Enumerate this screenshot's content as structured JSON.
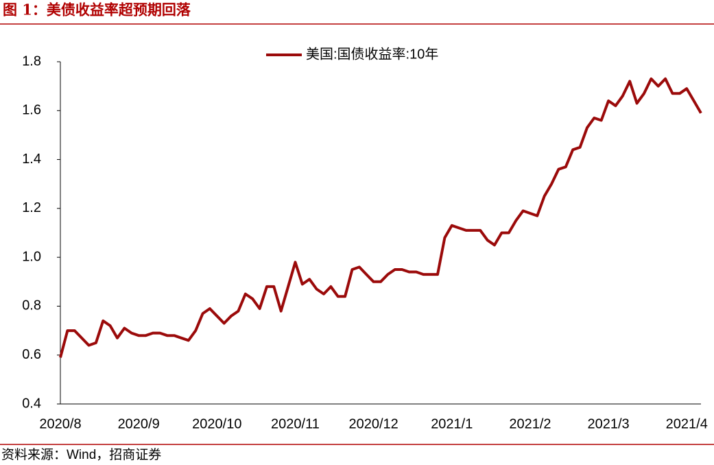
{
  "title": "图 1：美债收益率超预期回落",
  "source": "资料来源：Wind，招商证券",
  "chart_data": {
    "type": "line",
    "categories": [
      "2020/8",
      null,
      null,
      null,
      null,
      null,
      null,
      null,
      null,
      null,
      null,
      "2020/9",
      null,
      null,
      null,
      null,
      null,
      null,
      null,
      null,
      null,
      null,
      "2020/10",
      null,
      null,
      null,
      null,
      null,
      null,
      null,
      null,
      null,
      null,
      "2020/11",
      null,
      null,
      null,
      null,
      null,
      null,
      null,
      null,
      null,
      null,
      "2020/12",
      null,
      null,
      null,
      null,
      null,
      null,
      null,
      null,
      null,
      null,
      "2021/1",
      null,
      null,
      null,
      null,
      null,
      null,
      null,
      null,
      null,
      null,
      "2021/2",
      null,
      null,
      null,
      null,
      null,
      null,
      null,
      null,
      null,
      null,
      "2021/3",
      null,
      null,
      null,
      null,
      null,
      null,
      null,
      null,
      null,
      null,
      "2021/4",
      null,
      null
    ],
    "series": [
      {
        "name": "美国:国债收益率:10年",
        "color": "#9b0a0a",
        "values": [
          0.59,
          0.7,
          0.7,
          0.67,
          0.64,
          0.65,
          0.74,
          0.72,
          0.67,
          0.71,
          0.69,
          0.68,
          0.68,
          0.69,
          0.69,
          0.68,
          0.68,
          0.67,
          0.66,
          0.7,
          0.77,
          0.79,
          0.76,
          0.73,
          0.76,
          0.78,
          0.85,
          0.83,
          0.79,
          0.88,
          0.88,
          0.78,
          0.88,
          0.98,
          0.89,
          0.91,
          0.87,
          0.85,
          0.88,
          0.84,
          0.84,
          0.95,
          0.96,
          0.93,
          0.9,
          0.9,
          0.93,
          0.95,
          0.95,
          0.94,
          0.94,
          0.93,
          0.93,
          0.93,
          1.08,
          1.13,
          1.12,
          1.11,
          1.11,
          1.11,
          1.07,
          1.05,
          1.1,
          1.1,
          1.15,
          1.19,
          1.18,
          1.17,
          1.25,
          1.3,
          1.36,
          1.37,
          1.44,
          1.45,
          1.53,
          1.57,
          1.56,
          1.64,
          1.62,
          1.66,
          1.72,
          1.63,
          1.67,
          1.73,
          1.7,
          1.73,
          1.67,
          1.67,
          1.69,
          1.64,
          1.59
        ]
      }
    ],
    "ylim": [
      0.4,
      1.8
    ],
    "yticks": [
      0.4,
      0.6,
      0.8,
      {
        "value": 1,
        "label": "1.0"
      },
      1.2,
      1.4,
      1.6,
      1.8
    ],
    "legend": "top"
  }
}
